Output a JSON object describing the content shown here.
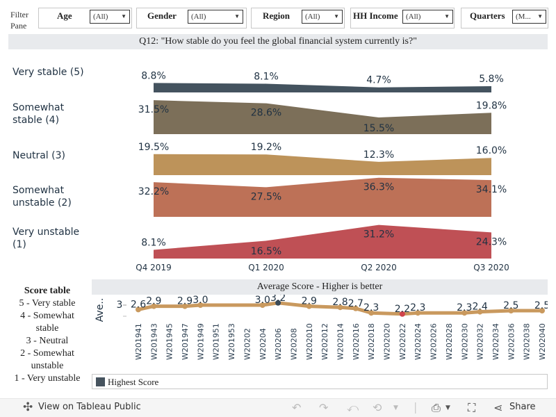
{
  "filters": {
    "pane_label": "Filter Pane",
    "items": [
      {
        "label": "Age",
        "value": "(All)"
      },
      {
        "label": "Gender",
        "value": "(All)"
      },
      {
        "label": "Region",
        "value": "(All)"
      },
      {
        "label": "HH Income",
        "value": "(All)"
      },
      {
        "label": "Quarters",
        "value": "(M..."
      }
    ]
  },
  "question_title": "Q12: \"How stable do you feel the global financial system currently is?\"",
  "rows": [
    {
      "label_line1": "Very stable (5)",
      "label_line2": ""
    },
    {
      "label_line1": "Somewhat",
      "label_line2": "stable (4)"
    },
    {
      "label_line1": "Neutral (3)",
      "label_line2": ""
    },
    {
      "label_line1": "Somewhat",
      "label_line2": "unstable (2)"
    },
    {
      "label_line1": "Very unstable",
      "label_line2": "(1)"
    }
  ],
  "chart_data": [
    {
      "type": "area",
      "title": "Q12: \"How stable do you feel the global financial system currently is?\"",
      "categories": [
        "Q4 2019",
        "Q1 2020",
        "Q2 2020",
        "Q3 2020"
      ],
      "unit": "%",
      "series": [
        {
          "name": "Very stable (5)",
          "color": "#44535f",
          "values": [
            8.8,
            8.1,
            4.7,
            5.8
          ],
          "labels": [
            "8.8%",
            "8.1%",
            "4.7%",
            "5.8%"
          ]
        },
        {
          "name": "Somewhat stable (4)",
          "color": "#7c6f59",
          "values": [
            31.5,
            28.6,
            15.5,
            19.8
          ],
          "labels": [
            "31.5%",
            "28.6%",
            "15.5%",
            "19.8%"
          ]
        },
        {
          "name": "Neutral (3)",
          "color": "#bd935a",
          "values": [
            19.5,
            19.2,
            12.3,
            16.0
          ],
          "labels": [
            "19.5%",
            "19.2%",
            "12.3%",
            "16.0%"
          ]
        },
        {
          "name": "Somewhat unstable (2)",
          "color": "#bd7157",
          "values": [
            32.2,
            27.5,
            36.3,
            34.1
          ],
          "labels": [
            "32.2%",
            "27.5%",
            "36.3%",
            "34.1%"
          ]
        },
        {
          "name": "Very unstable (1)",
          "color": "#bf5055",
          "values": [
            8.1,
            16.5,
            31.2,
            24.3
          ],
          "labels": [
            "8.1%",
            "16.5%",
            "31.2%",
            "24.3%"
          ]
        }
      ]
    },
    {
      "type": "line",
      "title": "Average Score - Higher is better",
      "ylabel": "Ave..",
      "yticks": [
        "3"
      ],
      "x": [
        "W201941",
        "W201943",
        "W201945",
        "W201947",
        "W201949",
        "W201951",
        "W201953",
        "W20202",
        "W20204",
        "W20206",
        "W20208",
        "W202010",
        "W202012",
        "W202014",
        "W202016",
        "W202018",
        "W202020",
        "W202022",
        "W202024",
        "W202026",
        "W202028",
        "W202030",
        "W202032",
        "W202034",
        "W202036",
        "W202038",
        "W202040"
      ],
      "points": [
        {
          "x": "W201941",
          "value": 2.6
        },
        {
          "x": "W201943",
          "value": 2.9
        },
        {
          "x": "W201947",
          "value": 2.9
        },
        {
          "x": "W201949",
          "value": 3.0
        },
        {
          "x": "W20204",
          "value": 3.0
        },
        {
          "x": "W20206",
          "value": 3.2,
          "highlight": "highest"
        },
        {
          "x": "W202010",
          "value": 2.9
        },
        {
          "x": "W202014",
          "value": 2.8
        },
        {
          "x": "W202016",
          "value": 2.7
        },
        {
          "x": "W202018",
          "value": 2.3
        },
        {
          "x": "W202022",
          "value": 2.2,
          "highlight": "lowest"
        },
        {
          "x": "W202024",
          "value": 2.3
        },
        {
          "x": "W202030",
          "value": 2.3
        },
        {
          "x": "W202032",
          "value": 2.4
        },
        {
          "x": "W202036",
          "value": 2.5
        },
        {
          "x": "W202040",
          "value": 2.5
        }
      ],
      "line_color": "#c9995e",
      "highest_color": "#3b4a57",
      "lowest_color": "#d0434b",
      "legend": [
        {
          "label": "Highest Score",
          "color": "#46535e"
        }
      ]
    }
  ],
  "score_table": {
    "title": "Score table",
    "lines": [
      "5 - Very stable",
      "4 - Somewhat",
      "stable",
      "3 - Neutral",
      "2 - Somewhat",
      "unstable",
      "1 - Very unstable"
    ]
  },
  "avg_title": "Average Score - Higher is better",
  "legend_label": "Highest Score",
  "toolbar": {
    "view_label": "View on Tableau Public",
    "share_label": "Share"
  }
}
